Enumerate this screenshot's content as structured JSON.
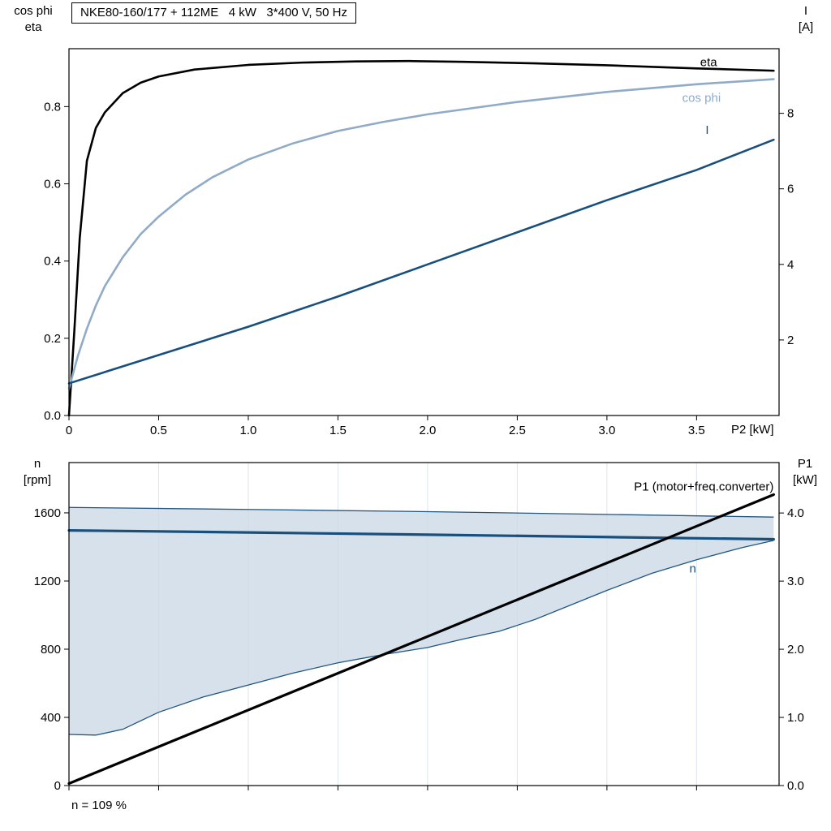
{
  "title": "NKE80-160/177 + 112ME   4 kW   3*400 V, 50 Hz",
  "chart_data": [
    {
      "name": "performance",
      "type": "line",
      "xlim": [
        0,
        3.96
      ],
      "xlabel": "P2 [kW]",
      "xticks": [
        {
          "v": 0,
          "l": "0"
        },
        {
          "v": 0.5,
          "l": "0.5"
        },
        {
          "v": 1.0,
          "l": "1.0"
        },
        {
          "v": 1.5,
          "l": "1.5"
        },
        {
          "v": 2.0,
          "l": "2.0"
        },
        {
          "v": 2.5,
          "l": "2.5"
        },
        {
          "v": 3.0,
          "l": "3.0"
        },
        {
          "v": 3.5,
          "l": "3.5"
        }
      ],
      "axes": {
        "left": {
          "title": "cos phi\neta",
          "lim": [
            0,
            0.95
          ],
          "ticks": [
            {
              "v": 0.0,
              "l": "0.0"
            },
            {
              "v": 0.2,
              "l": "0.2"
            },
            {
              "v": 0.4,
              "l": "0.4"
            },
            {
              "v": 0.6,
              "l": "0.6"
            },
            {
              "v": 0.8,
              "l": "0.8"
            }
          ]
        },
        "right": {
          "title": "I\n[A]",
          "lim": [
            0,
            9.71
          ],
          "ticks": [
            {
              "v": 2,
              "l": "2"
            },
            {
              "v": 4,
              "l": "4"
            },
            {
              "v": 6,
              "l": "6"
            },
            {
              "v": 8,
              "l": "8"
            }
          ]
        }
      },
      "series": [
        {
          "name": "eta",
          "label": "eta",
          "axis": "left",
          "color": "#000000",
          "width": 2.6,
          "label_pos": [
            3.52,
            0.905
          ],
          "label_anchor": "start",
          "label_color": "#000000",
          "x": [
            0,
            0.03,
            0.06,
            0.1,
            0.15,
            0.2,
            0.3,
            0.4,
            0.5,
            0.7,
            1.0,
            1.3,
            1.6,
            1.9,
            2.2,
            2.6,
            3.0,
            3.5,
            3.93
          ],
          "y": [
            0,
            0.22,
            0.46,
            0.66,
            0.745,
            0.785,
            0.835,
            0.862,
            0.878,
            0.896,
            0.908,
            0.914,
            0.917,
            0.918,
            0.916,
            0.912,
            0.907,
            0.899,
            0.893
          ]
        },
        {
          "name": "cos-phi",
          "label": "cos phi",
          "axis": "left",
          "color": "#8fabc8",
          "width": 2.6,
          "label_pos": [
            3.42,
            0.812
          ],
          "label_anchor": "start",
          "label_color": "#8fabc8",
          "x": [
            0,
            0.05,
            0.1,
            0.15,
            0.2,
            0.3,
            0.4,
            0.5,
            0.65,
            0.8,
            1.0,
            1.25,
            1.5,
            1.75,
            2.0,
            2.5,
            3.0,
            3.5,
            3.93
          ],
          "y": [
            0.07,
            0.155,
            0.225,
            0.285,
            0.335,
            0.41,
            0.47,
            0.515,
            0.572,
            0.617,
            0.663,
            0.705,
            0.737,
            0.76,
            0.78,
            0.812,
            0.838,
            0.858,
            0.871
          ]
        },
        {
          "name": "current",
          "label": "I",
          "axis": "right",
          "color": "#184f7d",
          "width": 2.6,
          "label_pos": [
            3.55,
            7.45
          ],
          "label_anchor": "start",
          "label_color": "#184f7d",
          "x": [
            0,
            0.5,
            1.0,
            1.5,
            2.0,
            2.5,
            3.0,
            3.5,
            3.93
          ],
          "y": [
            0.85,
            1.6,
            2.35,
            3.15,
            4.0,
            4.85,
            5.7,
            6.5,
            7.3
          ]
        }
      ]
    },
    {
      "name": "speed-power",
      "type": "line",
      "xlim": [
        0,
        3.96
      ],
      "xlabel": "",
      "grid_color": "#dce4ed",
      "annotation": "n = 109 %",
      "xticks": [
        {
          "v": 0,
          "l": ""
        },
        {
          "v": 0.5,
          "l": ""
        },
        {
          "v": 1.0,
          "l": ""
        },
        {
          "v": 1.5,
          "l": ""
        },
        {
          "v": 2.0,
          "l": ""
        },
        {
          "v": 2.5,
          "l": ""
        },
        {
          "v": 3.0,
          "l": ""
        },
        {
          "v": 3.5,
          "l": ""
        }
      ],
      "axes": {
        "left": {
          "title": "n\n[rpm]",
          "lim": [
            0,
            1895
          ],
          "ticks": [
            {
              "v": 0,
              "l": "0"
            },
            {
              "v": 400,
              "l": "400"
            },
            {
              "v": 800,
              "l": "800"
            },
            {
              "v": 1200,
              "l": "1200"
            },
            {
              "v": 1600,
              "l": "1600"
            }
          ]
        },
        "right": {
          "title": "P1\n[kW]",
          "lim": [
            0,
            4.74
          ],
          "ticks": [
            {
              "v": 0,
              "l": "0.0"
            },
            {
              "v": 1,
              "l": "1.0"
            },
            {
              "v": 2,
              "l": "2.0"
            },
            {
              "v": 3,
              "l": "3.0"
            },
            {
              "v": 4,
              "l": "4.0"
            }
          ]
        }
      },
      "band": {
        "name": "speed-control-range",
        "fill": "#ccd9e6",
        "fill_opacity": 0.8,
        "edge": "#1f5683",
        "x": [
          0,
          0.15,
          0.3,
          0.5,
          0.75,
          1.0,
          1.25,
          1.5,
          1.75,
          2.0,
          2.2,
          2.4,
          2.6,
          2.8,
          3.0,
          3.25,
          3.5,
          3.75,
          3.93
        ],
        "lower": [
          300,
          296,
          330,
          430,
          520,
          590,
          660,
          720,
          768,
          810,
          860,
          905,
          975,
          1060,
          1145,
          1245,
          1325,
          1395,
          1438
        ],
        "upper_x": [
          0,
          1.0,
          2.0,
          3.0,
          3.93
        ],
        "upper": [
          1632,
          1620,
          1607,
          1591,
          1575
        ]
      },
      "series": [
        {
          "name": "speed",
          "label": "n",
          "axis": "left",
          "color": "#184f7d",
          "width": 3.2,
          "label_pos": [
            3.46,
            1250
          ],
          "label_anchor": "start",
          "label_color": "#184f7d",
          "x": [
            0,
            1.0,
            2.0,
            3.0,
            3.93
          ],
          "y": [
            1497,
            1485,
            1472,
            1458,
            1445
          ]
        },
        {
          "name": "p1",
          "label": "P1 (motor+freq.converter)",
          "axis": "right",
          "color": "#000000",
          "width": 3.2,
          "label_pos": [
            3.93,
            4.33
          ],
          "label_anchor": "end",
          "label_color": "#000000",
          "x": [
            0,
            3.93
          ],
          "y": [
            0.03,
            4.27
          ]
        }
      ]
    }
  ]
}
